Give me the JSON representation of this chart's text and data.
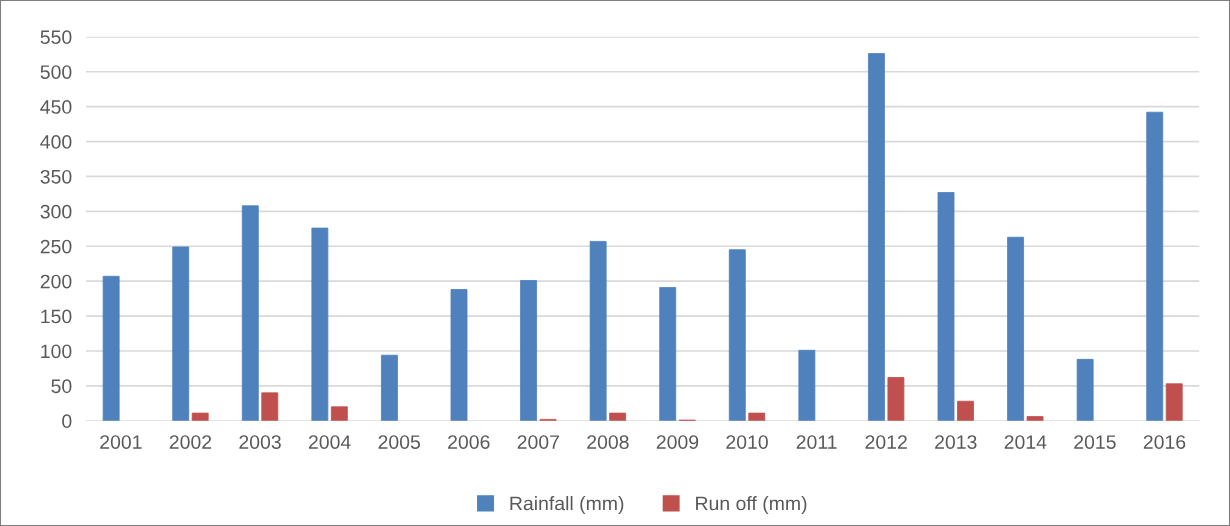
{
  "chart_data": {
    "type": "bar",
    "categories": [
      "2001",
      "2002",
      "2003",
      "2004",
      "2005",
      "2006",
      "2007",
      "2008",
      "2009",
      "2010",
      "2011",
      "2012",
      "2013",
      "2014",
      "2015",
      "2016"
    ],
    "series": [
      {
        "name": "Rainfall (mm)",
        "color": "#4f81bd",
        "values": [
          207,
          249,
          308,
          276,
          94,
          188,
          201,
          257,
          191,
          245,
          101,
          526,
          327,
          263,
          88,
          442
        ]
      },
      {
        "name": "Run off (mm)",
        "color": "#c0504d",
        "values": [
          0,
          11,
          40,
          20,
          0,
          0,
          2,
          11,
          1,
          11,
          0,
          62,
          28,
          6,
          0,
          53
        ]
      }
    ],
    "ylim": [
      0,
      550
    ],
    "yticks": [
      0,
      50,
      100,
      150,
      200,
      250,
      300,
      350,
      400,
      450,
      500,
      550
    ],
    "grid": "y",
    "legend": "bottom"
  }
}
